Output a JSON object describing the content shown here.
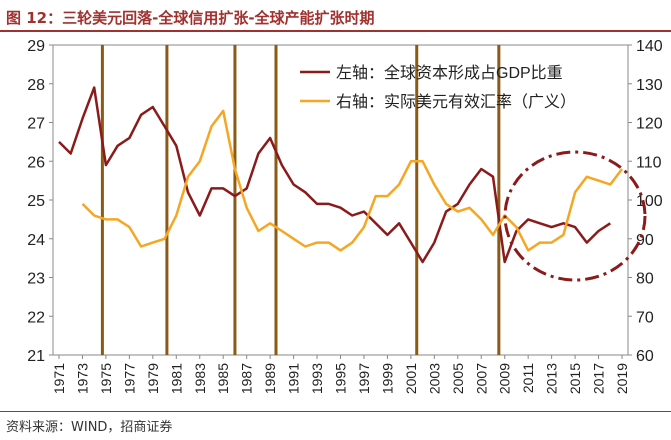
{
  "header": {
    "title": "图 12：三轮美元回落-全球信用扩张-全球产能扩张时期"
  },
  "footer": {
    "source": "资料来源：WIND，招商证券"
  },
  "colors": {
    "brand": "#a0312f",
    "left_series": "#8b1a1a",
    "right_series": "#f5a623",
    "vlines": "#8b5a14",
    "circle": "#8b1a1a"
  },
  "chart_data": {
    "type": "line",
    "title": "",
    "x": [
      1971,
      1972,
      1973,
      1974,
      1975,
      1976,
      1977,
      1978,
      1979,
      1980,
      1981,
      1982,
      1983,
      1984,
      1985,
      1986,
      1987,
      1988,
      1989,
      1990,
      1991,
      1992,
      1993,
      1994,
      1995,
      1996,
      1997,
      1998,
      1999,
      2000,
      2001,
      2002,
      2003,
      2004,
      2005,
      2006,
      2007,
      2008,
      2009,
      2010,
      2011,
      2012,
      2013,
      2014,
      2015,
      2016,
      2017,
      2018,
      2019
    ],
    "x_ticks": [
      "1971",
      "1973",
      "1975",
      "1977",
      "1979",
      "1981",
      "1983",
      "1985",
      "1987",
      "1989",
      "1991",
      "1993",
      "1995",
      "1997",
      "1999",
      "2001",
      "2003",
      "2005",
      "2007",
      "2009",
      "2011",
      "2013",
      "2015",
      "2017",
      "2019"
    ],
    "y_left": {
      "ylim": [
        21,
        29
      ],
      "ticks": [
        "21",
        "22",
        "23",
        "24",
        "25",
        "26",
        "27",
        "28",
        "29"
      ]
    },
    "y_right": {
      "ylim": [
        60,
        140
      ],
      "ticks": [
        "60",
        "70",
        "80",
        "90",
        "100",
        "110",
        "120",
        "130",
        "140"
      ]
    },
    "series": [
      {
        "name": "左轴：全球资本形成占GDP比重",
        "axis": "left",
        "values": [
          26.5,
          26.2,
          27.1,
          27.9,
          25.9,
          26.4,
          26.6,
          27.2,
          27.4,
          26.9,
          26.4,
          25.2,
          24.6,
          25.3,
          25.3,
          25.1,
          25.3,
          26.2,
          26.6,
          25.9,
          25.4,
          25.2,
          24.9,
          24.9,
          24.8,
          24.6,
          24.7,
          24.4,
          24.1,
          24.4,
          23.9,
          23.4,
          23.9,
          24.7,
          24.9,
          25.4,
          25.8,
          25.6,
          23.4,
          24.2,
          24.5,
          24.4,
          24.3,
          24.4,
          24.3,
          23.9,
          24.2,
          24.4,
          null
        ]
      },
      {
        "name": "右轴：实际美元有效汇率（广义）",
        "axis": "right",
        "values": [
          null,
          null,
          99,
          96,
          95,
          95,
          93,
          88,
          89,
          90,
          96,
          106,
          110,
          119,
          123,
          108,
          98,
          92,
          94,
          92,
          90,
          88,
          89,
          89,
          87,
          89,
          93,
          101,
          101,
          104,
          110,
          110,
          104,
          99,
          97,
          98,
          95,
          91,
          96,
          93,
          87,
          89,
          89,
          91,
          102,
          106,
          105,
          104,
          108
        ]
      }
    ],
    "vertical_lines_at": [
      1974.7,
      1980.2,
      1986.0,
      1989.5,
      2001.5,
      2008.5
    ],
    "annotation": "dash-dot circle highlighting 2009-2019"
  }
}
